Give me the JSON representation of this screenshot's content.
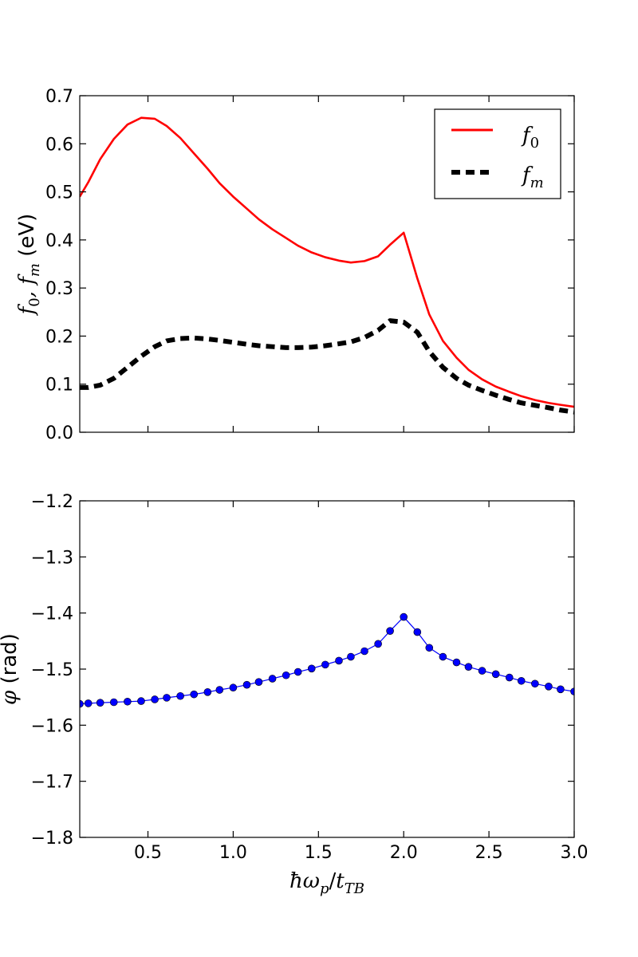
{
  "colors": {
    "f0": "#ff0000",
    "fm": "#000000",
    "phi": "#0000ff",
    "axes": "#000000",
    "background": "#ffffff"
  },
  "chart_data": [
    {
      "type": "line",
      "title": "",
      "xlabel": "",
      "ylabel": "f_0, f_m (eV)",
      "ylabel_parts": {
        "math": "f0, fm",
        "unit": "(eV)"
      },
      "xlim": [
        0.1,
        3.0
      ],
      "ylim": [
        0.0,
        0.7
      ],
      "xticks": [
        0.5,
        1.0,
        1.5,
        2.0,
        2.5,
        3.0
      ],
      "yticks": [
        0.0,
        0.1,
        0.2,
        0.3,
        0.4,
        0.5,
        0.6,
        0.7
      ],
      "ytick_labels": [
        "0.0",
        "0.1",
        "0.2",
        "0.3",
        "0.4",
        "0.5",
        "0.6",
        "0.7"
      ],
      "show_xtick_labels": false,
      "grid": false,
      "legend": {
        "position": "top-right",
        "entries": [
          {
            "series": "f0",
            "label": "f0"
          },
          {
            "series": "fm",
            "label": "fm"
          }
        ]
      },
      "x": [
        0.1,
        0.15,
        0.22,
        0.3,
        0.38,
        0.46,
        0.54,
        0.61,
        0.69,
        0.77,
        0.85,
        0.92,
        1.0,
        1.08,
        1.15,
        1.23,
        1.31,
        1.38,
        1.46,
        1.54,
        1.62,
        1.69,
        1.77,
        1.85,
        1.92,
        2.0,
        2.08,
        2.15,
        2.23,
        2.31,
        2.38,
        2.46,
        2.54,
        2.62,
        2.69,
        2.77,
        2.85,
        2.92,
        3.0
      ],
      "series": [
        {
          "name": "f0",
          "style": "solid",
          "color": "#ff0000",
          "values": [
            0.49,
            0.52,
            0.568,
            0.61,
            0.64,
            0.654,
            0.652,
            0.637,
            0.612,
            0.58,
            0.548,
            0.518,
            0.49,
            0.465,
            0.443,
            0.422,
            0.404,
            0.388,
            0.374,
            0.364,
            0.357,
            0.353,
            0.356,
            0.366,
            0.39,
            0.415,
            0.32,
            0.245,
            0.19,
            0.155,
            0.13,
            0.11,
            0.095,
            0.084,
            0.075,
            0.067,
            0.061,
            0.057,
            0.053
          ]
        },
        {
          "name": "fm",
          "style": "dashed",
          "color": "#000000",
          "values": [
            0.093,
            0.093,
            0.098,
            0.112,
            0.135,
            0.158,
            0.178,
            0.19,
            0.195,
            0.196,
            0.194,
            0.191,
            0.187,
            0.183,
            0.18,
            0.178,
            0.176,
            0.176,
            0.177,
            0.18,
            0.184,
            0.188,
            0.197,
            0.212,
            0.232,
            0.229,
            0.208,
            0.168,
            0.135,
            0.112,
            0.098,
            0.087,
            0.077,
            0.068,
            0.061,
            0.056,
            0.051,
            0.046,
            0.042
          ]
        }
      ]
    },
    {
      "type": "line",
      "title": "",
      "xlabel": "ħω_p/t_TB",
      "ylabel": "φ (rad)",
      "ylabel_parts": {
        "math": "φ",
        "unit": "(rad)"
      },
      "xlim": [
        0.1,
        3.0
      ],
      "ylim": [
        -1.8,
        -1.2
      ],
      "xticks": [
        0.5,
        1.0,
        1.5,
        2.0,
        2.5,
        3.0
      ],
      "xtick_labels": [
        "0.5",
        "1.0",
        "1.5",
        "2.0",
        "2.5",
        "3.0"
      ],
      "yticks": [
        -1.8,
        -1.7,
        -1.6,
        -1.5,
        -1.4,
        -1.3,
        -1.2
      ],
      "ytick_labels": [
        "−1.8",
        "−1.7",
        "−1.6",
        "−1.5",
        "−1.4",
        "−1.3",
        "−1.2"
      ],
      "grid": false,
      "legend": null,
      "x": [
        0.1,
        0.15,
        0.22,
        0.3,
        0.38,
        0.46,
        0.54,
        0.61,
        0.69,
        0.77,
        0.85,
        0.92,
        1.0,
        1.08,
        1.15,
        1.23,
        1.31,
        1.38,
        1.46,
        1.54,
        1.62,
        1.69,
        1.77,
        1.85,
        1.92,
        2.0,
        2.08,
        2.15,
        2.23,
        2.31,
        2.38,
        2.46,
        2.54,
        2.62,
        2.69,
        2.77,
        2.85,
        2.92,
        3.0
      ],
      "series": [
        {
          "name": "phi",
          "style": "solid-with-markers",
          "color": "#0000ff",
          "values": [
            -1.562,
            -1.561,
            -1.56,
            -1.559,
            -1.558,
            -1.557,
            -1.554,
            -1.551,
            -1.548,
            -1.545,
            -1.541,
            -1.537,
            -1.533,
            -1.528,
            -1.523,
            -1.517,
            -1.511,
            -1.505,
            -1.499,
            -1.492,
            -1.485,
            -1.478,
            -1.468,
            -1.455,
            -1.432,
            -1.407,
            -1.434,
            -1.462,
            -1.478,
            -1.488,
            -1.496,
            -1.503,
            -1.509,
            -1.515,
            -1.521,
            -1.526,
            -1.531,
            -1.536,
            -1.54
          ]
        }
      ]
    }
  ]
}
